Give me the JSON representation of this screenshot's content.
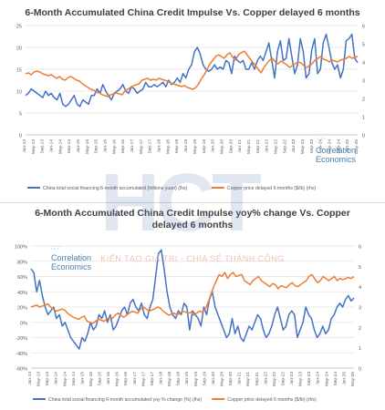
{
  "watermark": {
    "logo_text": "HCT",
    "tagline": "KIẾN TẠO GIÁ TRỊ - CHIA SẺ THÀNH CÔNG"
  },
  "brand": {
    "line1": "Correlation",
    "line2": "Economics"
  },
  "chart_data": [
    {
      "type": "line",
      "title": "6-Month Accumulated China Credit Impulse Vs. Copper delayed 6 months",
      "x_ticks": [
        "Jan-13",
        "May-13",
        "Sep-13",
        "Jan-14",
        "May-14",
        "Sep-14",
        "Jan-15",
        "May-15",
        "Sep-15",
        "Jan-16",
        "May-16",
        "Sep-16",
        "Jan-17",
        "May-17",
        "Sep-17",
        "Jan-18",
        "May-18",
        "Sep-18",
        "Jan-19",
        "May-19",
        "Sep-19",
        "Jan-20",
        "May-20",
        "Sep-20",
        "Jan-21",
        "May-21",
        "Sep-21",
        "Jan-22",
        "May-22",
        "Sep-22",
        "Jan-23",
        "May-23",
        "Sep-23",
        "Jan-24",
        "May-24",
        "Sep-24",
        "Jan-25",
        "May-25"
      ],
      "y_left": {
        "min": 0,
        "max": 25,
        "ticks": [
          0,
          5,
          10,
          15,
          20,
          25
        ]
      },
      "y_right": {
        "min": 0,
        "max": 6,
        "ticks": [
          0,
          1,
          2,
          3,
          4,
          5,
          6
        ]
      },
      "grid": true,
      "legend_position": "bottom",
      "series": [
        {
          "name": "China total social financing 6-month accumulated (trillions yuan) (lhs)",
          "axis": "left",
          "color": "#4472c4",
          "values": [
            9,
            9.5,
            10.5,
            10,
            9.5,
            9,
            8.5,
            10,
            9,
            9.5,
            8.5,
            8,
            9.5,
            7,
            6.5,
            7,
            8,
            9,
            7,
            6.5,
            8,
            7.5,
            7,
            9,
            9,
            10.5,
            9.5,
            11.5,
            10,
            9,
            8,
            9.5,
            10,
            10.5,
            11.5,
            10,
            9.5,
            11,
            10.5,
            9.5,
            10,
            10.5,
            12,
            11,
            11,
            11.5,
            11,
            11.5,
            12,
            11,
            12.5,
            11.5,
            12,
            13,
            12,
            14,
            13,
            15,
            16,
            19,
            20,
            18.5,
            16,
            15,
            14.5,
            15,
            16,
            15,
            15.5,
            15,
            17,
            16.5,
            14,
            18,
            17,
            16.5,
            17,
            15,
            15,
            16.5,
            15,
            17,
            18,
            17,
            19,
            21,
            17,
            13,
            19,
            21.5,
            17,
            17.5,
            22,
            18,
            14,
            16,
            22,
            19,
            13,
            14,
            19.5,
            22,
            14,
            15,
            21,
            23,
            20,
            16.5,
            15,
            16,
            13,
            15,
            21.5,
            22,
            23,
            17.5,
            16.5
          ]
        },
        {
          "name": "Copper price delayed 6 months ($/lb) (rhs)",
          "axis": "right",
          "color": "#ed7d31",
          "values": [
            3.35,
            3.4,
            3.3,
            3.45,
            3.5,
            3.45,
            3.35,
            3.3,
            3.25,
            3.3,
            3.2,
            3.1,
            3.2,
            3.05,
            3,
            3.15,
            3.2,
            3.1,
            3,
            2.95,
            2.8,
            2.7,
            2.6,
            2.5,
            2.45,
            2.35,
            2.3,
            2.2,
            2.15,
            2.1,
            2.2,
            2.25,
            2.3,
            2.25,
            2.2,
            2.4,
            2.5,
            2.6,
            2.7,
            2.75,
            2.8,
            3,
            3.05,
            3.1,
            3,
            3.05,
            3,
            3.1,
            3.05,
            3,
            2.95,
            2.85,
            2.8,
            2.75,
            2.7,
            2.65,
            2.7,
            2.6,
            2.55,
            2.5,
            2.6,
            2.8,
            3.1,
            3.3,
            3.6,
            3.9,
            4.1,
            4.3,
            4.4,
            4.3,
            4.2,
            4.4,
            4.5,
            4.25,
            4.1,
            4.4,
            4.5,
            4.6,
            4.4,
            4.2,
            4,
            3.8,
            3.6,
            3.4,
            3.7,
            3.9,
            4.1,
            4.2,
            4,
            3.9,
            4.05,
            3.95,
            3.85,
            3.7,
            3.8,
            3.9,
            4,
            3.95,
            3.8,
            3.7,
            3.8,
            3.9,
            4.1,
            4.2,
            4.3,
            4.15,
            4.1,
            4,
            4.1,
            4.05,
            4,
            4.1,
            4.15,
            4.2,
            4.3,
            4.2,
            4.25,
            4.3
          ]
        }
      ]
    },
    {
      "type": "line",
      "title": "6-Month Accumulated China Credit Impulse yoy% change Vs. Copper delayed 6 months",
      "x_ticks": [
        "Jan-13",
        "May-13",
        "Sep-13",
        "Jan-14",
        "May-14",
        "Sep-14",
        "Jan-15",
        "May-15",
        "Sep-15",
        "Jan-16",
        "May-16",
        "Sep-16",
        "Jan-17",
        "May-17",
        "Sep-17",
        "Jan-18",
        "May-18",
        "Sep-18",
        "Jan-19",
        "May-19",
        "Sep-19",
        "Jan-20",
        "May-20",
        "Sep-20",
        "Jan-21",
        "May-21",
        "Sep-21",
        "Jan-22",
        "May-22",
        "Sep-22",
        "Jan-23",
        "May-23",
        "Sep-23",
        "Jan-24",
        "May-24",
        "Sep-24",
        "Jan-25",
        "May-25"
      ],
      "y_left": {
        "min": -60,
        "max": 100,
        "ticks": [
          -60,
          -40,
          -20,
          0,
          20,
          40,
          60,
          80,
          100
        ],
        "format": "percent"
      },
      "y_right": {
        "min": 0,
        "max": 6,
        "ticks": [
          0,
          1,
          2,
          3,
          4,
          5,
          6
        ]
      },
      "grid": true,
      "legend_position": "bottom",
      "series": [
        {
          "name": "China total social financing 6-month accumulated yoy % change (%) (lhs)",
          "axis": "left",
          "color": "#4472c4",
          "values": [
            70,
            65,
            40,
            55,
            35,
            20,
            10,
            15,
            20,
            5,
            10,
            -5,
            0,
            -10,
            -20,
            -25,
            -30,
            -35,
            -20,
            -25,
            -15,
            0,
            -10,
            -5,
            10,
            5,
            15,
            0,
            10,
            -10,
            -5,
            5,
            15,
            20,
            10,
            25,
            30,
            20,
            15,
            25,
            10,
            5,
            20,
            30,
            60,
            90,
            95,
            70,
            40,
            20,
            10,
            5,
            15,
            10,
            25,
            20,
            -10,
            15,
            10,
            5,
            -5,
            20,
            10,
            30,
            40,
            20,
            10,
            0,
            -10,
            -20,
            -15,
            5,
            -15,
            -5,
            -20,
            -25,
            -15,
            -5,
            -10,
            0,
            10,
            5,
            -10,
            -20,
            -15,
            -5,
            10,
            20,
            5,
            -10,
            -5,
            10,
            15,
            10,
            -20,
            -10,
            0,
            20,
            10,
            5,
            -10,
            -20,
            -15,
            -5,
            -15,
            -10,
            5,
            10,
            20,
            25,
            20,
            30,
            35,
            28,
            32
          ]
        },
        {
          "name": "Copper price delayed 6 months ($/lb) (rhs)",
          "axis": "right",
          "color": "#ed7d31",
          "values": [
            3,
            3.05,
            3.1,
            3,
            3.05,
            3.1,
            3.15,
            3,
            2.9,
            2.8,
            2.85,
            2.9,
            2.85,
            2.7,
            2.6,
            2.5,
            2.45,
            2.4,
            2.5,
            2.55,
            2.3,
            2.25,
            2.2,
            2.3,
            2.4,
            2.35,
            2.3,
            2.4,
            2.5,
            2.45,
            2.6,
            2.7,
            2.6,
            2.5,
            2.6,
            2.7,
            2.8,
            2.75,
            2.7,
            2.9,
            3,
            2.9,
            2.8,
            2.85,
            2.9,
            3,
            2.95,
            2.8,
            2.7,
            2.6,
            2.65,
            2.7,
            2.6,
            2.7,
            2.8,
            2.75,
            2.7,
            2.75,
            2.6,
            2.7,
            2.8,
            2.75,
            2.9,
            3.2,
            3.6,
            4,
            4.3,
            4.6,
            4.5,
            4.7,
            4.4,
            4.6,
            4.7,
            4.5,
            4.55,
            4.6,
            4.3,
            4.2,
            4.1,
            4.3,
            4.4,
            4.5,
            4.3,
            4.2,
            4.1,
            4,
            4.15,
            4.1,
            3.9,
            4.05,
            4,
            3.95,
            4.1,
            4.2,
            4.05,
            4,
            4.1,
            4.2,
            4.3,
            4.5,
            4.6,
            4.4,
            4.2,
            4.3,
            4.5,
            4.4,
            4.3,
            4.4,
            4.5,
            4.3,
            4.4,
            4.35,
            4.4,
            4.45,
            4.4,
            4.5
          ]
        }
      ]
    }
  ]
}
